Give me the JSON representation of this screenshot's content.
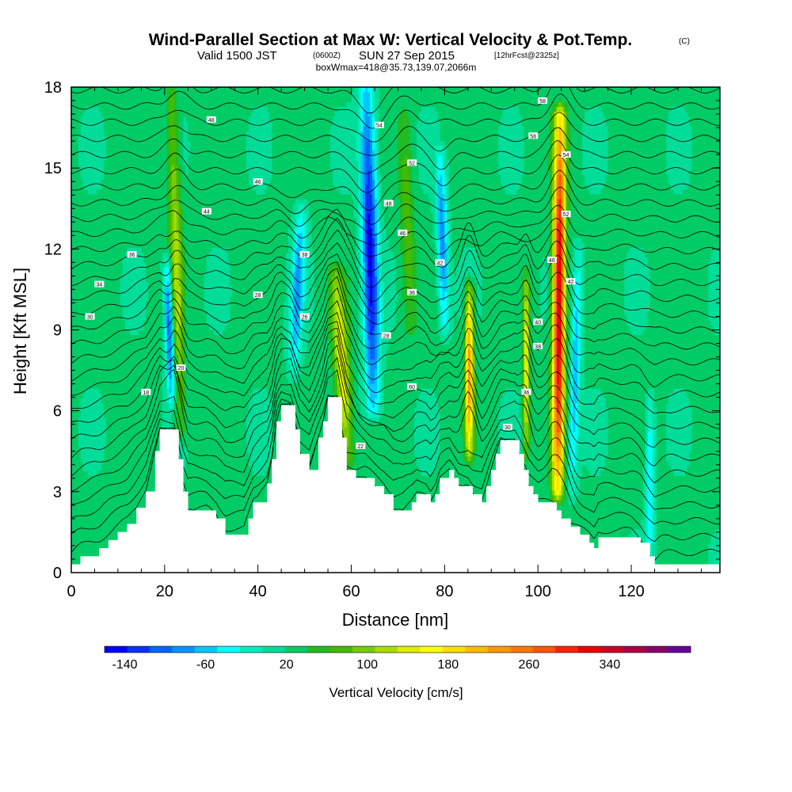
{
  "chart_data": {
    "type": "heatmap",
    "title": "Wind-Parallel Section at Max W: Vertical Velocity & Pot.Temp.",
    "title_mark": "(C)",
    "subtitle": {
      "part1": "Valid 1500 JST",
      "part2": "(0600Z)",
      "part3": "SUN 27 Sep 2015",
      "part4": "[12hrFcst@2325z]"
    },
    "subtitle2": "boxWmax=418@35.73,139.07,2066m",
    "xlabel": "Distance [nm]",
    "ylabel": "Height [Kft MSL]",
    "xlim": [
      0,
      139
    ],
    "ylim": [
      0,
      18
    ],
    "x_ticks": [
      0,
      20,
      40,
      60,
      80,
      100,
      120
    ],
    "y_ticks": [
      0,
      3,
      6,
      9,
      12,
      15,
      18
    ],
    "terrain_kft": [
      [
        0,
        0.3
      ],
      [
        2,
        0.6
      ],
      [
        6,
        0.9
      ],
      [
        8,
        1.2
      ],
      [
        10,
        1.5
      ],
      [
        12,
        1.8
      ],
      [
        14,
        2.4
      ],
      [
        16,
        3.0
      ],
      [
        18,
        4.5
      ],
      [
        19,
        5.3
      ],
      [
        22,
        5.3
      ],
      [
        23,
        4.2
      ],
      [
        24,
        3.0
      ],
      [
        25,
        2.3
      ],
      [
        29,
        2.3
      ],
      [
        31,
        2.0
      ],
      [
        33,
        1.4
      ],
      [
        37,
        1.4
      ],
      [
        38,
        2.0
      ],
      [
        39,
        2.6
      ],
      [
        42,
        3.3
      ],
      [
        43,
        4.2
      ],
      [
        44,
        5.6
      ],
      [
        45,
        6.2
      ],
      [
        47,
        6.2
      ],
      [
        48,
        5.3
      ],
      [
        49,
        4.4
      ],
      [
        51,
        3.8
      ],
      [
        53,
        5.0
      ],
      [
        54,
        5.6
      ],
      [
        55,
        6.5
      ],
      [
        57,
        6.5
      ],
      [
        58,
        5.0
      ],
      [
        59,
        3.8
      ],
      [
        61,
        3.5
      ],
      [
        63,
        3.5
      ],
      [
        65,
        3.2
      ],
      [
        67,
        2.9
      ],
      [
        69,
        2.3
      ],
      [
        71,
        2.3
      ],
      [
        73,
        2.6
      ],
      [
        74,
        2.9
      ],
      [
        76,
        2.9
      ],
      [
        77,
        2.6
      ],
      [
        78,
        2.9
      ],
      [
        79,
        3.5
      ],
      [
        81,
        3.8
      ],
      [
        82,
        3.5
      ],
      [
        83,
        3.2
      ],
      [
        85,
        3.2
      ],
      [
        86,
        2.9
      ],
      [
        88,
        2.6
      ],
      [
        89,
        3.2
      ],
      [
        90,
        3.8
      ],
      [
        91,
        4.4
      ],
      [
        92,
        4.9
      ],
      [
        95,
        4.9
      ],
      [
        96,
        4.4
      ],
      [
        97,
        3.8
      ],
      [
        98,
        3.2
      ],
      [
        99,
        2.9
      ],
      [
        100,
        2.6
      ],
      [
        103,
        2.6
      ],
      [
        104,
        2.3
      ],
      [
        105,
        2.0
      ],
      [
        107,
        1.7
      ],
      [
        109,
        1.4
      ],
      [
        111,
        1.1
      ],
      [
        112,
        0.9
      ],
      [
        113,
        1.3
      ],
      [
        120,
        1.3
      ],
      [
        122,
        1.1
      ],
      [
        124,
        0.6
      ],
      [
        125,
        0.3
      ],
      [
        139,
        0.3
      ]
    ],
    "vertical_velocity_features": [
      {
        "x": 22.5,
        "y_bottom": 5.3,
        "y_top": 18,
        "w_center": 110,
        "lean": -2.0,
        "width": 1.6
      },
      {
        "x": 21.0,
        "y_bottom": 6.5,
        "y_top": 11.5,
        "w_center": -120,
        "lean": -1.0,
        "width": 1.2
      },
      {
        "x": 48.5,
        "y_bottom": 7.5,
        "y_top": 13.5,
        "w_center": -80,
        "lean": 1.5,
        "width": 1.8
      },
      {
        "x": 58.0,
        "y_bottom": 4.2,
        "y_top": 11.0,
        "w_center": 150,
        "lean": -2.5,
        "width": 2.0
      },
      {
        "x": 64.0,
        "y_bottom": 6.0,
        "y_top": 18,
        "w_center": -150,
        "lean": -1.5,
        "width": 2.2
      },
      {
        "x": 72.0,
        "y_bottom": 9.0,
        "y_top": 17.0,
        "w_center": 70,
        "lean": -1.0,
        "width": 1.8
      },
      {
        "x": 79.5,
        "y_bottom": 9.0,
        "y_top": 15.5,
        "w_center": -90,
        "lean": -1.0,
        "width": 1.5
      },
      {
        "x": 85.3,
        "y_bottom": 4.5,
        "y_top": 10.5,
        "w_center": 230,
        "lean": 0.0,
        "width": 1.1
      },
      {
        "x": 97.5,
        "y_bottom": 4.5,
        "y_top": 10.8,
        "w_center": 160,
        "lean": 0.0,
        "width": 0.8
      },
      {
        "x": 104.5,
        "y_bottom": 3.0,
        "y_top": 17.0,
        "w_center": 340,
        "lean": 0.5,
        "width": 1.6
      },
      {
        "x": 108.0,
        "y_bottom": 3.0,
        "y_top": 12.0,
        "w_center": -70,
        "lean": 1.5,
        "width": 1.4
      },
      {
        "x": 124.0,
        "y_bottom": 0.5,
        "y_top": 6.5,
        "w_center": -60,
        "lean": 0.0,
        "width": 1.2
      }
    ],
    "isentrope_labels": [
      {
        "x": 30,
        "y": 16.8,
        "text": "48"
      },
      {
        "x": 40,
        "y": 14.5,
        "text": "46"
      },
      {
        "x": 29,
        "y": 13.4,
        "text": "44"
      },
      {
        "x": 13,
        "y": 11.8,
        "text": "36"
      },
      {
        "x": 6,
        "y": 10.7,
        "text": "34"
      },
      {
        "x": 4,
        "y": 9.5,
        "text": "30"
      },
      {
        "x": 23.5,
        "y": 7.6,
        "text": "20"
      },
      {
        "x": 16,
        "y": 6.7,
        "text": "18"
      },
      {
        "x": 50,
        "y": 11.8,
        "text": "38"
      },
      {
        "x": 40,
        "y": 10.3,
        "text": "28"
      },
      {
        "x": 50,
        "y": 9.5,
        "text": "26"
      },
      {
        "x": 67.5,
        "y": 8.8,
        "text": "28"
      },
      {
        "x": 66,
        "y": 16.6,
        "text": "54"
      },
      {
        "x": 73,
        "y": 15.2,
        "text": "52"
      },
      {
        "x": 68,
        "y": 13.7,
        "text": "48"
      },
      {
        "x": 71,
        "y": 12.6,
        "text": "46"
      },
      {
        "x": 79,
        "y": 11.5,
        "text": "42"
      },
      {
        "x": 73,
        "y": 10.4,
        "text": "36"
      },
      {
        "x": 73,
        "y": 6.9,
        "text": "60"
      },
      {
        "x": 62,
        "y": 4.7,
        "text": "22"
      },
      {
        "x": 101,
        "y": 17.5,
        "text": "58"
      },
      {
        "x": 99,
        "y": 16.2,
        "text": "56"
      },
      {
        "x": 106,
        "y": 15.5,
        "text": "54"
      },
      {
        "x": 106,
        "y": 13.3,
        "text": "52"
      },
      {
        "x": 103,
        "y": 11.6,
        "text": "46"
      },
      {
        "x": 107,
        "y": 10.8,
        "text": "42"
      },
      {
        "x": 100,
        "y": 9.3,
        "text": "40"
      },
      {
        "x": 100,
        "y": 8.4,
        "text": "38"
      },
      {
        "x": 97.5,
        "y": 6.7,
        "text": "36"
      },
      {
        "x": 93.5,
        "y": 5.4,
        "text": "30"
      }
    ],
    "colorbar": {
      "label": "Vertical Velocity [cm/s]",
      "min": -160,
      "max": 420,
      "tick_labels": [
        "-140",
        "-60",
        "20",
        "100",
        "180",
        "260",
        "340"
      ],
      "tick_values": [
        -140,
        -60,
        20,
        100,
        180,
        260,
        340
      ],
      "colors": [
        "#0000ff",
        "#0a32ff",
        "#0064ff",
        "#0096ff",
        "#00c8ff",
        "#00ffff",
        "#00eebb",
        "#00dd99",
        "#00cc66",
        "#22bb22",
        "#44bb00",
        "#77cc00",
        "#aadd00",
        "#ddee00",
        "#ffff00",
        "#ffdd00",
        "#ffbb00",
        "#ff9900",
        "#ff7700",
        "#ff5500",
        "#ff2200",
        "#ee0000",
        "#cc0022",
        "#aa0044",
        "#880066",
        "#660099"
      ]
    }
  }
}
